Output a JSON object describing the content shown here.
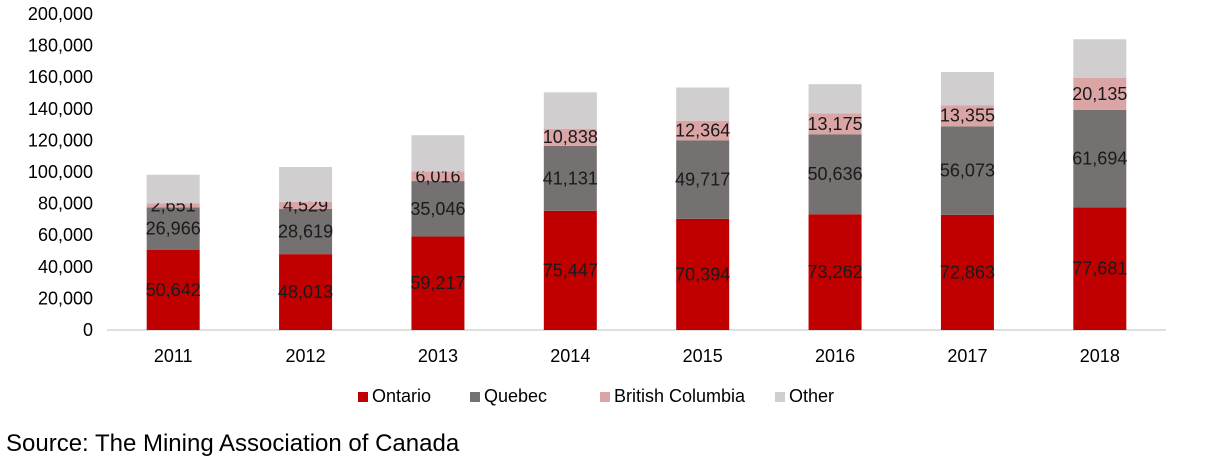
{
  "chart_data": {
    "type": "bar",
    "stacked": true,
    "categories": [
      "2011",
      "2012",
      "2013",
      "2014",
      "2015",
      "2016",
      "2017",
      "2018"
    ],
    "series": [
      {
        "name": "Ontario",
        "color": "#c00000",
        "values": [
          50642,
          48013,
          59217,
          75447,
          70394,
          73262,
          72863,
          77681
        ],
        "labels": [
          "50,642",
          "48,013",
          "59,217",
          "75,447",
          "70,394",
          "73,262",
          "72,863",
          "77,681"
        ]
      },
      {
        "name": "Quebec",
        "color": "#767171",
        "values": [
          26966,
          28619,
          35046,
          41131,
          49717,
          50636,
          56073,
          61694
        ],
        "labels": [
          "26,966",
          "28,619",
          "35,046",
          "41,131",
          "49,717",
          "50,636",
          "56,073",
          "61,694"
        ]
      },
      {
        "name": "British Columbia",
        "color": "#dca5a5",
        "values": [
          2651,
          4529,
          6016,
          10838,
          12364,
          13175,
          13355,
          20135
        ],
        "labels": [
          "2,651",
          "4,529",
          "6,016",
          "10,838",
          "12,364",
          "13,175",
          "13,355",
          "20,135"
        ]
      },
      {
        "name": "Other",
        "color": "#d0cece",
        "values": [
          18000,
          22000,
          23000,
          23000,
          21000,
          18500,
          21000,
          24500
        ],
        "labels": []
      }
    ],
    "ylim": [
      0,
      200000
    ],
    "yticks": [
      0,
      20000,
      40000,
      60000,
      80000,
      100000,
      120000,
      140000,
      160000,
      180000,
      200000
    ],
    "ytick_labels": [
      "0",
      "20,000",
      "40,000",
      "60,000",
      "80,000",
      "100,000",
      "120,000",
      "140,000",
      "160,000",
      "180,000",
      "200,000"
    ],
    "legend_position": "bottom",
    "grid": false
  },
  "source_text": "Source: The Mining Association of Canada"
}
